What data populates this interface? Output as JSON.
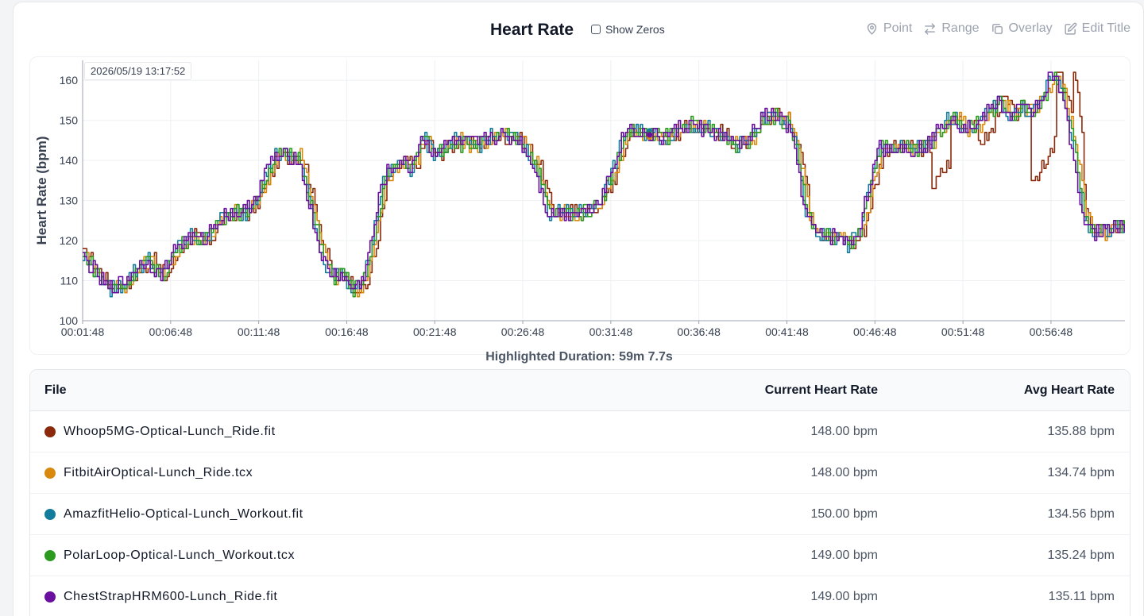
{
  "header": {
    "title": "Heart Rate",
    "show_zeros_label": "Show Zeros"
  },
  "toolbar": {
    "point_label": "Point",
    "range_label": "Range",
    "overlay_label": "Overlay",
    "edit_title_label": "Edit Title"
  },
  "chart_data": {
    "type": "line",
    "ylabel": "Heart Rate (bpm)",
    "ylim": [
      100,
      165
    ],
    "yticks": [
      100,
      110,
      120,
      130,
      140,
      150,
      160
    ],
    "xlim_minutes": [
      1.8,
      61.0
    ],
    "xticks": [
      {
        "min": 1.8,
        "label": "00:01:48"
      },
      {
        "min": 6.8,
        "label": "00:06:48"
      },
      {
        "min": 11.8,
        "label": "00:11:48"
      },
      {
        "min": 16.8,
        "label": "00:16:48"
      },
      {
        "min": 21.8,
        "label": "00:21:48"
      },
      {
        "min": 26.8,
        "label": "00:26:48"
      },
      {
        "min": 31.8,
        "label": "00:31:48"
      },
      {
        "min": 36.8,
        "label": "00:36:48"
      },
      {
        "min": 41.8,
        "label": "00:41:48"
      },
      {
        "min": 46.8,
        "label": "00:46:48"
      },
      {
        "min": 51.8,
        "label": "00:51:48"
      },
      {
        "min": 56.8,
        "label": "00:56:48"
      }
    ],
    "timestamp": "2026/05/19 13:17:52",
    "cursor_minute": 34.0,
    "base_profile": {
      "x": [
        1.8,
        2.5,
        3.2,
        4.0,
        4.8,
        5.5,
        6.2,
        7.0,
        7.8,
        8.6,
        9.4,
        10.2,
        11.0,
        11.8,
        12.6,
        13.2,
        14.0,
        14.6,
        15.2,
        15.8,
        16.4,
        17.0,
        17.6,
        18.2,
        18.8,
        19.3,
        19.8,
        20.4,
        21.0,
        21.6,
        22.2,
        22.8,
        23.4,
        24.2,
        25.0,
        25.8,
        26.6,
        27.4,
        28.2,
        29.0,
        29.8,
        30.6,
        31.2,
        31.8,
        32.6,
        33.4,
        34.0,
        34.8,
        35.6,
        36.4,
        37.2,
        38.0,
        38.8,
        39.6,
        40.4,
        41.0,
        41.6,
        42.2,
        42.8,
        43.4,
        44.0,
        44.6,
        45.2,
        45.8,
        46.4,
        47.0,
        47.6,
        48.2,
        49.0,
        49.8,
        50.6,
        51.2,
        51.8,
        52.6,
        53.2,
        53.8,
        54.4,
        55.0,
        55.6,
        56.2,
        56.8,
        57.4,
        58.0,
        58.6,
        59.2,
        59.8,
        60.4,
        61.0
      ],
      "y": [
        116,
        112,
        108,
        109,
        113,
        115,
        111,
        118,
        121,
        120,
        125,
        127,
        127,
        133,
        141,
        141,
        141,
        130,
        118,
        111,
        112,
        108,
        109,
        120,
        135,
        138,
        140,
        138,
        146,
        142,
        143,
        145,
        144,
        144,
        146,
        146,
        145,
        139,
        127,
        127,
        127,
        128,
        131,
        137,
        148,
        147,
        146,
        146,
        148,
        149,
        148,
        146,
        144,
        145,
        151,
        151,
        150,
        144,
        127,
        122,
        121,
        121,
        119,
        122,
        133,
        143,
        143,
        143,
        143,
        144,
        149,
        151,
        148,
        149,
        152,
        155,
        151,
        153,
        152,
        155,
        162,
        156,
        143,
        125,
        122,
        122,
        124,
        123
      ]
    },
    "series": [
      {
        "name": "Whoop5MG-Optical-Lunch_Ride.fit",
        "color": "#8a2a0b",
        "shift": 0.35,
        "dip": true
      },
      {
        "name": "FitbitAirOptical-Lunch_Ride.tcx",
        "color": "#d98a0e",
        "shift": 0.25,
        "dip": false
      },
      {
        "name": "AmazfitHelio-Optical-Lunch_Workout.fit",
        "color": "#137c9c",
        "shift": 0.05,
        "dip": false
      },
      {
        "name": "PolarLoop-Optical-Lunch_Workout.tcx",
        "color": "#2b9a1f",
        "shift": 0.12,
        "dip": false
      },
      {
        "name": "ChestStrapHRM600-Lunch_Ride.fit",
        "color": "#6a0f9e",
        "shift": 0.0,
        "dip": false
      }
    ]
  },
  "highlight": {
    "duration_text": "Highlighted Duration: 59m 7.7s"
  },
  "table": {
    "headers": {
      "file": "File",
      "current": "Current Heart Rate",
      "avg": "Avg Heart Rate"
    },
    "rows": [
      {
        "file": "Whoop5MG-Optical-Lunch_Ride.fit",
        "color": "#8a2a0b",
        "current": "148.00 bpm",
        "avg": "135.88 bpm"
      },
      {
        "file": "FitbitAirOptical-Lunch_Ride.tcx",
        "color": "#d98a0e",
        "current": "148.00 bpm",
        "avg": "134.74 bpm"
      },
      {
        "file": "AmazfitHelio-Optical-Lunch_Workout.fit",
        "color": "#137c9c",
        "current": "150.00 bpm",
        "avg": "134.56 bpm"
      },
      {
        "file": "PolarLoop-Optical-Lunch_Workout.tcx",
        "color": "#2b9a1f",
        "current": "149.00 bpm",
        "avg": "135.24 bpm"
      },
      {
        "file": "ChestStrapHRM600-Lunch_Ride.fit",
        "color": "#6a0f9e",
        "current": "149.00 bpm",
        "avg": "135.11 bpm"
      }
    ]
  }
}
